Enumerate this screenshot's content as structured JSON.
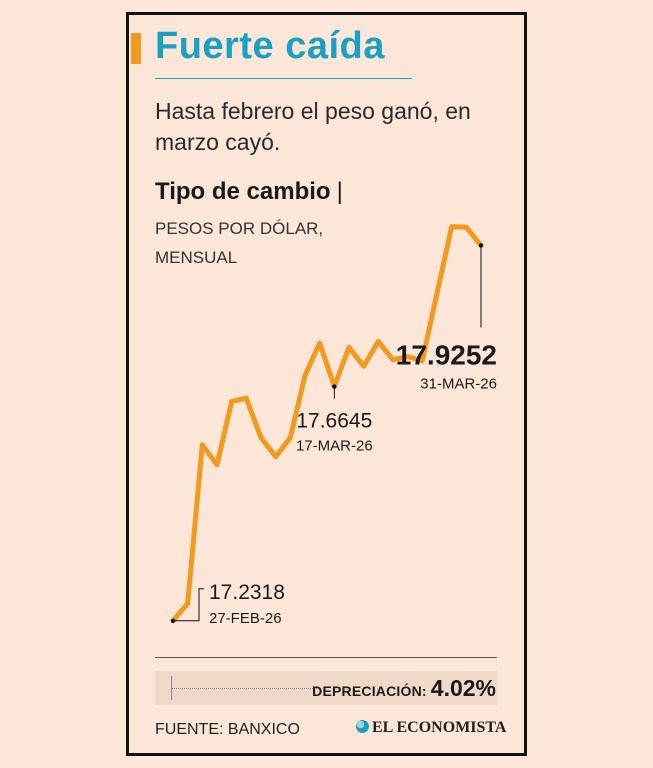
{
  "header": {
    "title": "Fuerte caída",
    "subtitle": "Hasta febrero el peso ganó, en marzo cayó."
  },
  "chart": {
    "title": "Tipo de cambio",
    "separator": "|",
    "unit": "PESOS POR DÓLAR, MENSUAL"
  },
  "chart_data": {
    "type": "line",
    "title": "Tipo de cambio",
    "ylabel": "PESOS POR DÓLAR, MENSUAL",
    "xlabel": "",
    "series": [
      {
        "name": "Tipo de cambio",
        "color": "#f39a1e",
        "values": [
          17.2318,
          17.264,
          17.557,
          17.52,
          17.637,
          17.643,
          17.57,
          17.535,
          17.57,
          17.685,
          17.745,
          17.6645,
          17.737,
          17.702,
          17.748,
          17.714,
          17.72,
          17.712,
          17.837,
          17.96,
          17.959,
          17.9252
        ]
      }
    ],
    "ylim": [
      17.2,
      18.0
    ],
    "annotations": [
      {
        "index": 0,
        "value": "17.2318",
        "date": "27-FEB-26"
      },
      {
        "index": 11,
        "value": "17.6645",
        "date": "17-MAR-26"
      },
      {
        "index": 21,
        "value": "17.9252",
        "date": "31-MAR-26"
      }
    ]
  },
  "depreciation": {
    "label": "DEPRECIACIÓN:",
    "value": "4.02%"
  },
  "footer": {
    "source": "FUENTE: BANXICO",
    "brand": "EL ECONOMISTA"
  },
  "colors": {
    "accent": "#f39a1e",
    "title": "#19a0c3",
    "background": "#fbe6d8"
  }
}
